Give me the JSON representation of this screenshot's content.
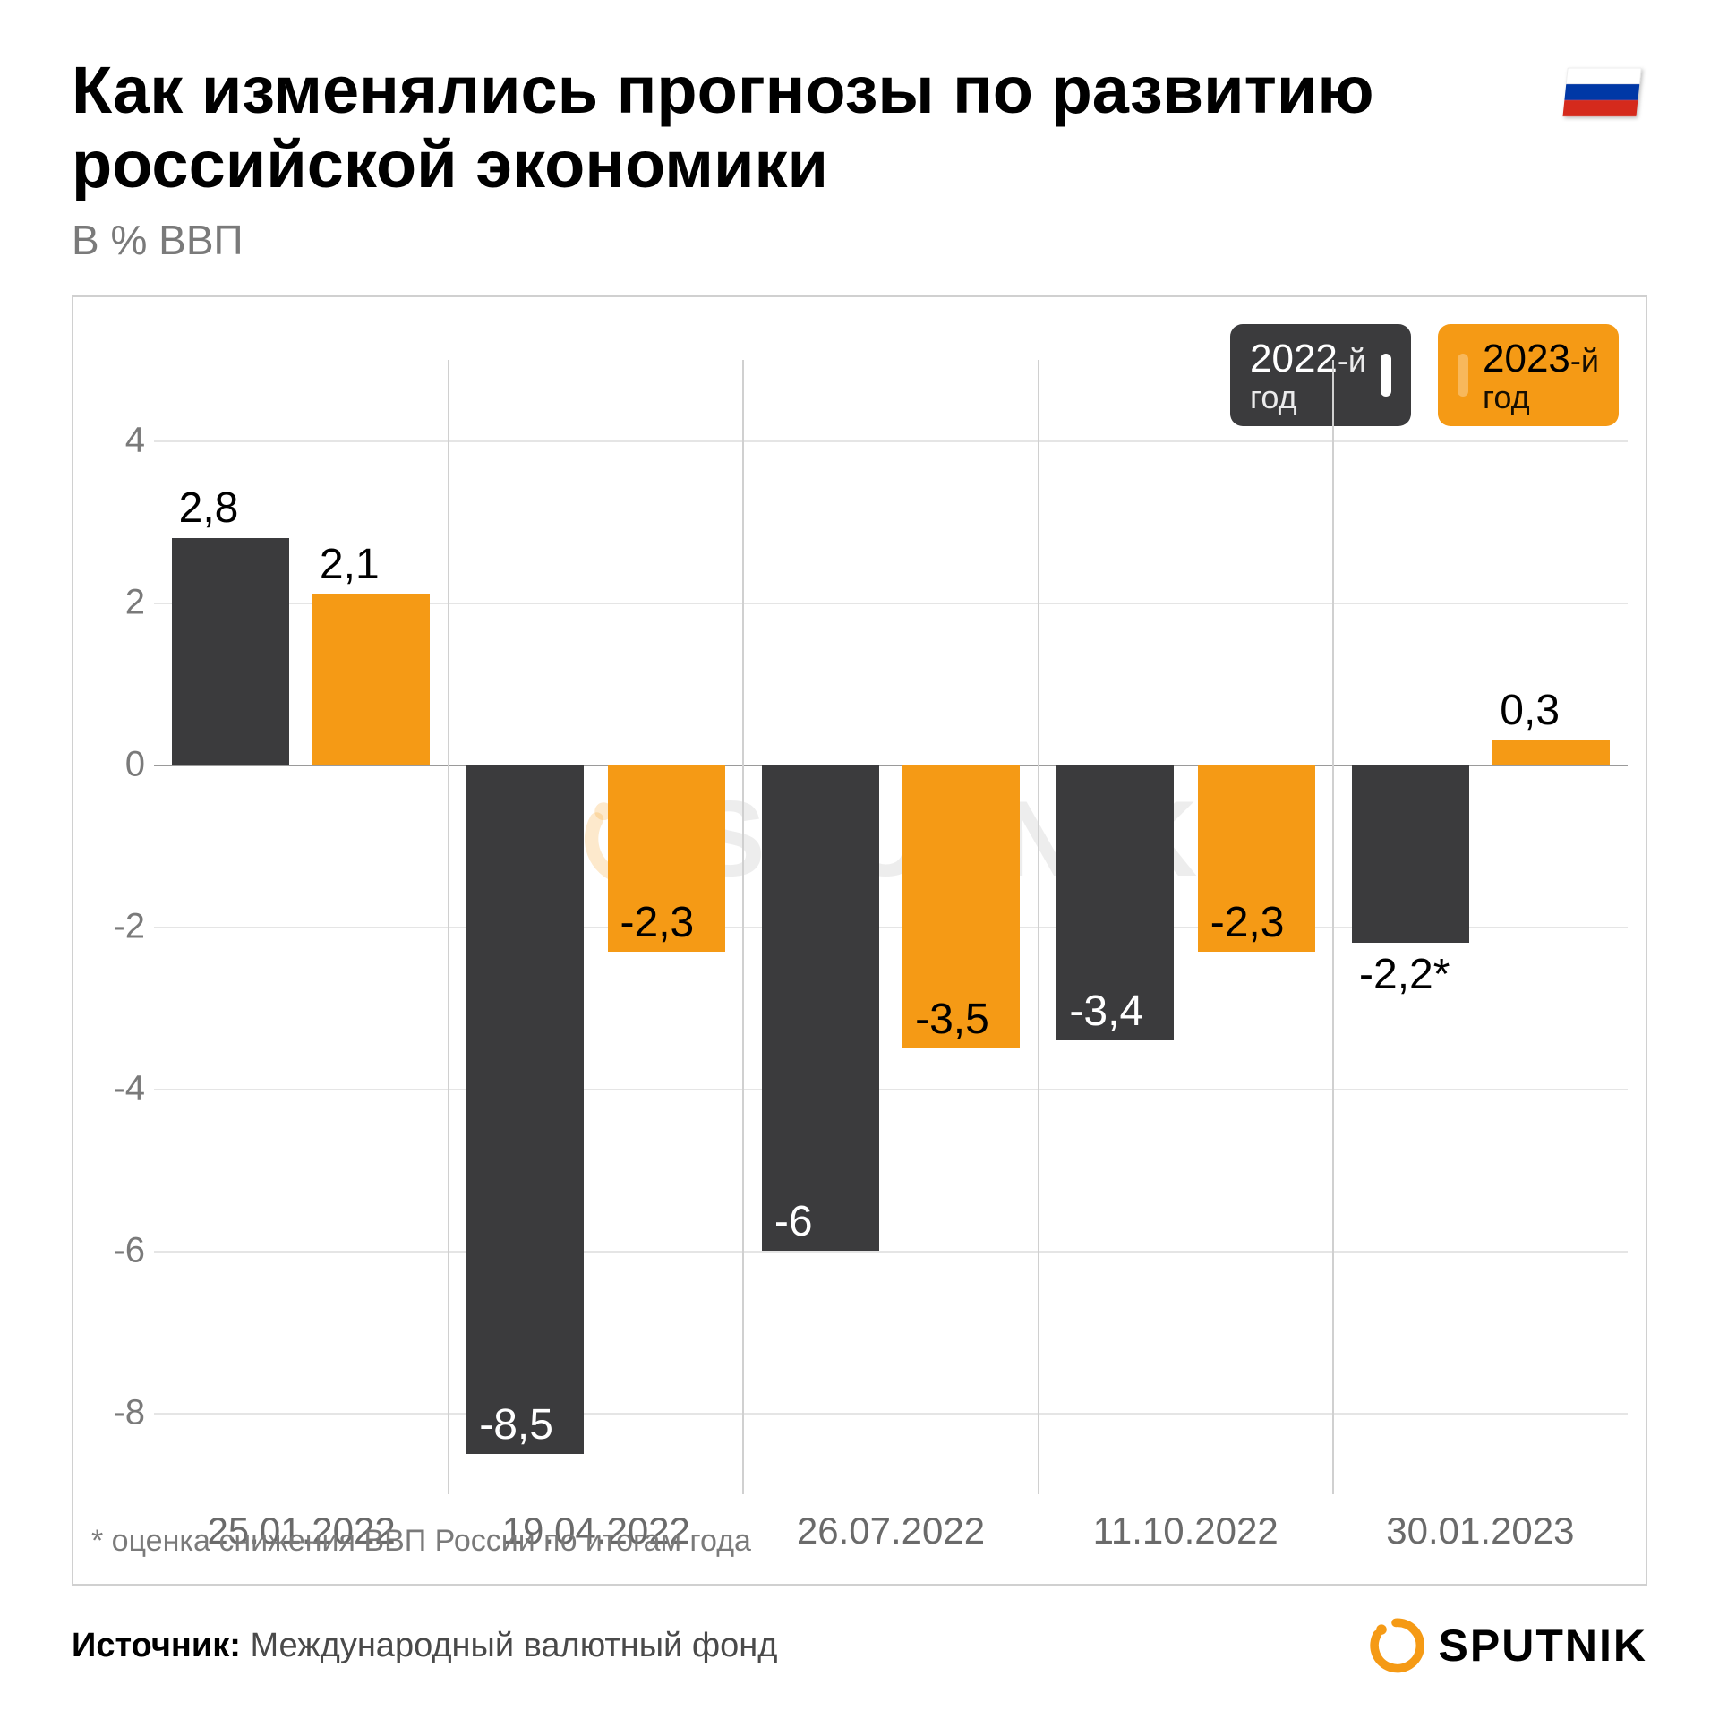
{
  "title": "Как изменялись прогнозы по развитию российской экономики",
  "subtitle": "В % ВВП",
  "chart": {
    "type": "bar",
    "ylim": [
      -9,
      5
    ],
    "yticks": [
      -8,
      -6,
      -4,
      -2,
      0,
      2,
      4
    ],
    "grid_color": "#e5e5e5",
    "zero_color": "#9a9a9a",
    "background_color": "#ffffff",
    "border_color": "#d0d0d0",
    "categories": [
      "25.01.2022",
      "19.04.2022",
      "26.07.2022",
      "11.10.2022",
      "30.01.2023"
    ],
    "series": [
      {
        "name": "2022",
        "suffix": "-й год",
        "color": "#3b3b3d",
        "text_color_neg": "#ffffff",
        "values": [
          2.8,
          -8.5,
          -6,
          -3.4,
          -2.2
        ],
        "labels": [
          "2,8",
          "-8,5",
          "-6",
          "-3,4",
          "-2,2*"
        ]
      },
      {
        "name": "2023",
        "suffix": "-й год",
        "color": "#f59a15",
        "text_color_neg": "#000000",
        "values": [
          2.1,
          -2.3,
          -3.5,
          -2.3,
          0.3
        ],
        "labels": [
          "2,1",
          "-2,3",
          "-3,5",
          "-2,3",
          "0,3"
        ]
      }
    ],
    "bar_width_pct": 40,
    "label_fontsize": 48,
    "axis_fontsize": 40,
    "category_fontsize": 42
  },
  "legend": {
    "items": [
      {
        "year": "2022",
        "suffix": "-й",
        "sub": "год",
        "bg": "#3b3b3d",
        "fg": "#ffffff",
        "marker": "#ffffff"
      },
      {
        "year": "2023",
        "suffix": "-й",
        "sub": "год",
        "bg": "#f59a15",
        "fg": "#000000",
        "marker": "#f59a15"
      }
    ]
  },
  "footnote": "* оценка снижения ВВП России по итогам года",
  "source_label": "Источник:",
  "source_value": "Международный валютный фонд",
  "brand": "SPUTNIK",
  "flag_colors": {
    "top": "#ffffff",
    "mid": "#0039a6",
    "bot": "#d52b1e"
  }
}
